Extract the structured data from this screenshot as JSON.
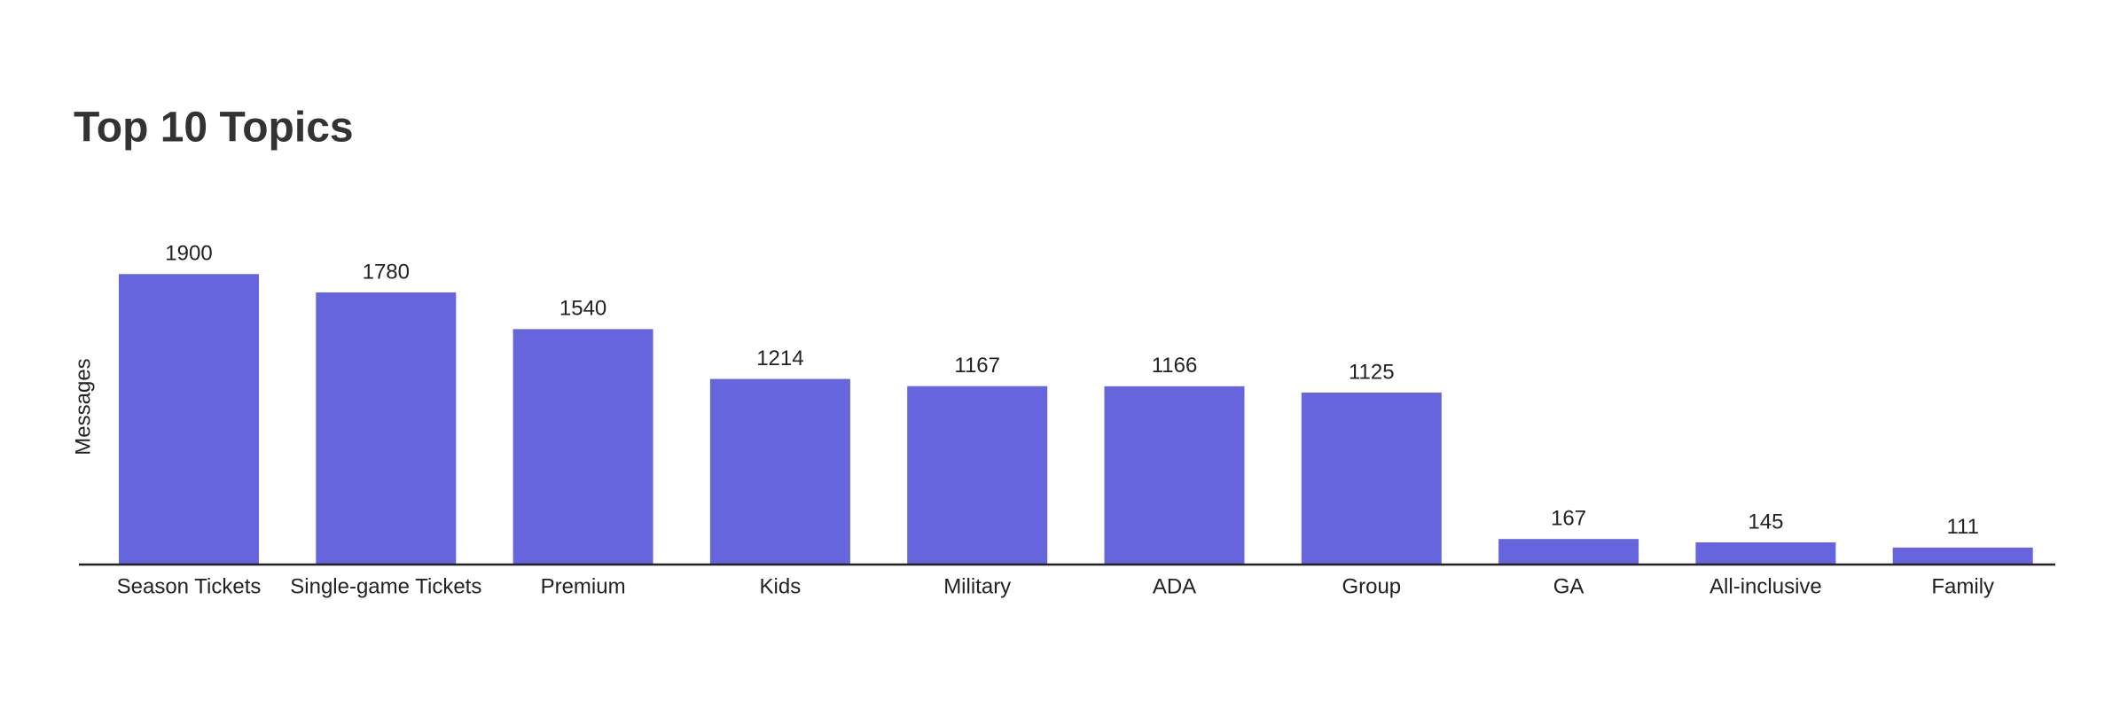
{
  "chart_data": {
    "type": "bar",
    "title": "Top 10 Topics",
    "y_label": "Messages",
    "categories": [
      "Season Tickets",
      "Single-game Tickets",
      "Premium",
      "Kids",
      "Military",
      "ADA",
      "Group",
      "GA",
      "All-inclusive",
      "Family"
    ],
    "values": [
      1900,
      1780,
      1540,
      1214,
      1167,
      1166,
      1125,
      167,
      145,
      111
    ],
    "color": "#6665dd",
    "ylim": [
      0,
      2000
    ],
    "grid": false,
    "value_labels_shown": true
  }
}
